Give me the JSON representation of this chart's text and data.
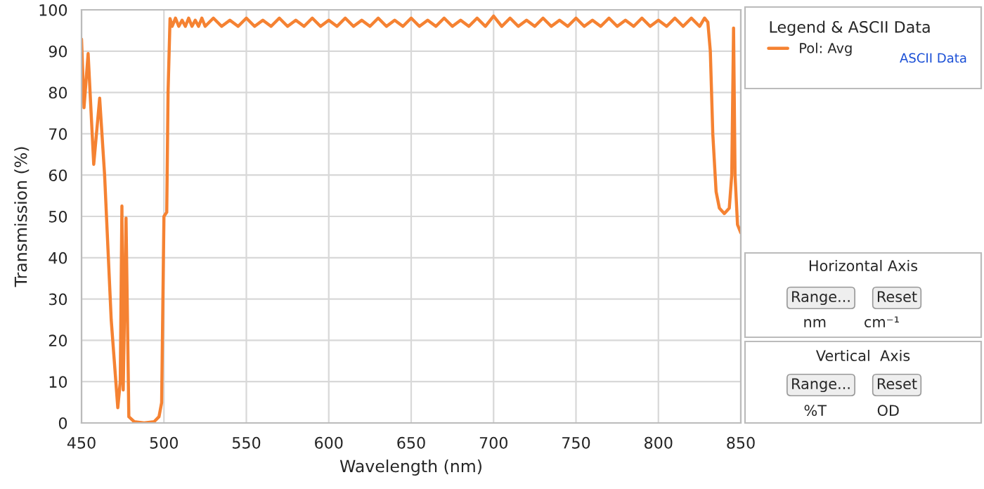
{
  "chart_data": {
    "type": "line",
    "xlabel": "Wavelength (nm)",
    "ylabel": "Transmission (%)",
    "legend_title": "Legend & ASCII Data",
    "legend": "top right",
    "grid": true,
    "marker": "none",
    "line_style": "solid",
    "xlim": [
      450,
      850
    ],
    "xticks": [
      450,
      500,
      550,
      600,
      650,
      700,
      750,
      800,
      850
    ],
    "ylim": [
      0,
      100
    ],
    "yticks": [
      0,
      10,
      20,
      30,
      40,
      50,
      60,
      70,
      80,
      90,
      100
    ],
    "series": [
      {
        "name": "Pol: Avg",
        "color": "#f58232",
        "x": [
          450,
          451.5,
          454,
          457.4,
          461,
          464,
          468,
          472,
          473.5,
          474.5,
          475.3,
          477,
          478.7,
          482,
          488,
          494,
          497,
          498.6,
          500,
          501.7,
          502.5,
          503.7,
          505,
          507,
          509,
          511,
          513,
          515,
          517,
          519,
          521,
          523,
          525,
          530,
          535,
          540,
          545,
          550,
          555,
          560,
          565,
          570,
          575,
          580,
          585,
          590,
          595,
          600,
          605,
          610,
          615,
          620,
          625,
          630,
          635,
          640,
          645,
          650,
          655,
          660,
          665,
          670,
          675,
          680,
          685,
          690,
          695,
          700,
          705,
          710,
          715,
          720,
          725,
          730,
          735,
          740,
          745,
          750,
          755,
          760,
          765,
          770,
          775,
          780,
          785,
          790,
          795,
          800,
          805,
          810,
          815,
          820,
          825,
          828,
          830,
          831.5,
          833,
          835,
          837,
          840,
          843,
          844.5,
          845.6,
          846.5,
          848,
          850
        ],
        "values": [
          92.9,
          76.3,
          89.4,
          62.6,
          78.6,
          60,
          25,
          3.7,
          10,
          52.5,
          8,
          49.6,
          1.5,
          0.3,
          0,
          0.3,
          1.5,
          4.9,
          50,
          51,
          80,
          97.9,
          96,
          98,
          96,
          97.5,
          96,
          98,
          96,
          97.5,
          96,
          98,
          96,
          98,
          96,
          97.5,
          96,
          98,
          96,
          97.5,
          96,
          98,
          96,
          97.5,
          96,
          98,
          96,
          97.5,
          96,
          98,
          96,
          97.5,
          96,
          98,
          96,
          97.5,
          96,
          98,
          96,
          97.5,
          96,
          98,
          96,
          97.5,
          96,
          98,
          96,
          98.5,
          96,
          98,
          96,
          97.5,
          96,
          98,
          96,
          97.5,
          96,
          98,
          96,
          97.5,
          96,
          98,
          96,
          97.5,
          96,
          98,
          96,
          97.5,
          96,
          98,
          96,
          98,
          96,
          98,
          97,
          90,
          70,
          56,
          52,
          50.7,
          52,
          60,
          95.6,
          60,
          48,
          46
        ]
      }
    ],
    "annotations": [
      "ASCII Data",
      "Horizontal Axis",
      "Range...",
      "Reset",
      "nm",
      "cm⁻¹",
      "Vertical  Axis",
      "Range...",
      "Reset",
      "%T",
      "OD"
    ]
  }
}
